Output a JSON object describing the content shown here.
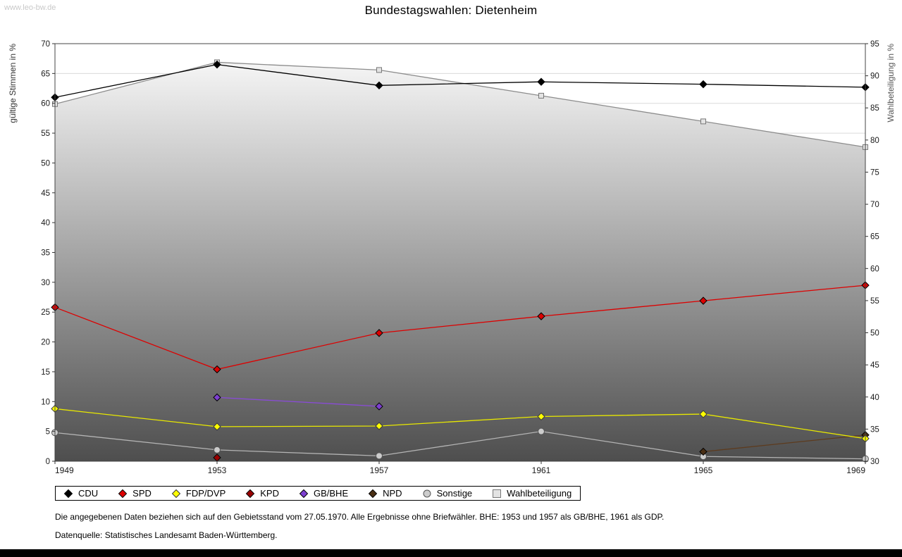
{
  "page": {
    "watermark": "www.leo-bw.de",
    "title": "Bundestagswahlen: Dietenheim",
    "footnote1": "Die angegebenen Daten beziehen sich auf den Gebietsstand vom 27.05.1970. Alle Ergebnisse ohne Briefwähler. BHE: 1953 und 1957 als GB/BHE, 1961 als GDP.",
    "footnote2": "Datenquelle: Statistisches Landesamt Baden-Württemberg."
  },
  "chart_data": {
    "type": "line",
    "title": "Bundestagswahlen: Dietenheim",
    "x": [
      1949,
      1953,
      1957,
      1961,
      1965,
      1969
    ],
    "xlabel": "",
    "ylabel_left": "gültige Stimmen in %",
    "ylabel_right": "Wahlbeteiligung in %",
    "ylim_left": [
      0,
      70
    ],
    "ylim_right": [
      30,
      95
    ],
    "ytick_step": 5,
    "grid": true,
    "legend_position": "bottom",
    "series": [
      {
        "name": "CDU",
        "axis": "left",
        "marker": "diamond",
        "color": "#000000",
        "marker_fill": "#000000",
        "marker_stroke": "#000000",
        "values": [
          61.0,
          66.5,
          63.0,
          63.6,
          63.2,
          62.7
        ]
      },
      {
        "name": "SPD",
        "axis": "left",
        "marker": "diamond",
        "color": "#dd0000",
        "marker_fill": "#dd0000",
        "marker_stroke": "#000000",
        "values": [
          25.8,
          15.4,
          21.5,
          24.3,
          26.9,
          29.5
        ]
      },
      {
        "name": "FDP/DVP",
        "axis": "left",
        "marker": "diamond",
        "color": "#e8e800",
        "marker_fill": "#ffff00",
        "marker_stroke": "#3a3a3a",
        "values": [
          8.8,
          5.8,
          5.9,
          7.5,
          7.9,
          3.8
        ]
      },
      {
        "name": "KPD",
        "axis": "left",
        "marker": "diamond",
        "color": "#990000",
        "marker_fill": "#990000",
        "marker_stroke": "#000000",
        "values": [
          null,
          0.6,
          null,
          null,
          null,
          null
        ]
      },
      {
        "name": "GB/BHE",
        "axis": "left",
        "marker": "diamond",
        "color": "#8a4bd8",
        "marker_fill": "#7d3fd1",
        "marker_stroke": "#000000",
        "values": [
          null,
          10.7,
          9.2,
          null,
          null,
          null
        ]
      },
      {
        "name": "NPD",
        "axis": "left",
        "marker": "diamond",
        "color": "#5d3b1e",
        "marker_fill": "#4a2f14",
        "marker_stroke": "#000000",
        "values": [
          null,
          null,
          null,
          null,
          1.6,
          4.4
        ]
      },
      {
        "name": "Sonstige",
        "axis": "left",
        "marker": "circle",
        "color": "#b4b4b4",
        "marker_fill": "#cccccc",
        "marker_stroke": "#555555",
        "values": [
          4.8,
          1.9,
          0.9,
          5.0,
          0.8,
          0.4
        ]
      },
      {
        "name": "Wahlbeteiligung",
        "axis": "right",
        "marker": "square",
        "color": "#8c8c8c",
        "marker_fill": "#e3e3e3",
        "marker_stroke": "#777777",
        "area": true,
        "area_gradient": [
          "#fdfdfd",
          "#4e4e4e"
        ],
        "values": [
          85.6,
          92.1,
          90.9,
          86.9,
          82.9,
          78.9
        ]
      }
    ]
  }
}
